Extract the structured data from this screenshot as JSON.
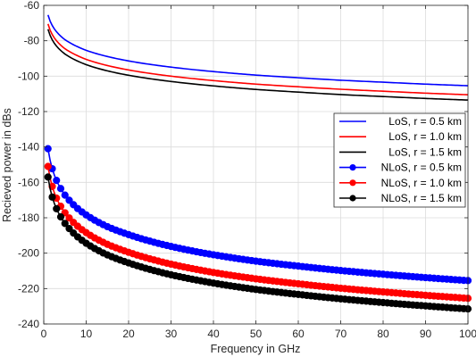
{
  "chart_data": {
    "type": "line",
    "title": "",
    "xlabel": "Frequency in GHz",
    "ylabel": "Recieved power in dBs",
    "xlim": [
      0,
      100
    ],
    "ylim": [
      -240,
      -60
    ],
    "xticks": [
      0,
      10,
      20,
      30,
      40,
      50,
      60,
      70,
      80,
      90,
      100
    ],
    "yticks": [
      -240,
      -220,
      -200,
      -180,
      -160,
      -140,
      -120,
      -100,
      -80,
      -60
    ],
    "grid": true,
    "legend_position": "right, middle",
    "x": [
      1,
      2,
      3,
      4,
      5,
      6,
      8,
      10,
      15,
      20,
      30,
      40,
      50,
      60,
      70,
      80,
      90,
      100
    ],
    "series": [
      {
        "name": "LoS, r = 0.5 km",
        "color": "#0000ff",
        "marker": "none",
        "values": [
          -65.4,
          -71.4,
          -74.9,
          -77.4,
          -79.4,
          -80.9,
          -83.4,
          -85.4,
          -88.9,
          -91.4,
          -94.9,
          -97.4,
          -99.4,
          -100.9,
          -102.3,
          -103.4,
          -104.5,
          -105.4
        ]
      },
      {
        "name": "LoS, r = 1.0 km",
        "color": "#ff0000",
        "marker": "none",
        "values": [
          -70.5,
          -76.5,
          -80.0,
          -82.5,
          -84.5,
          -86.0,
          -88.5,
          -90.5,
          -94.0,
          -96.5,
          -100.0,
          -102.5,
          -104.5,
          -106.0,
          -107.4,
          -108.5,
          -109.6,
          -110.5
        ]
      },
      {
        "name": "LoS, r = 1.5 km",
        "color": "#000000",
        "marker": "none",
        "values": [
          -73.5,
          -79.5,
          -83.0,
          -85.5,
          -87.5,
          -89.0,
          -91.5,
          -93.5,
          -97.0,
          -99.5,
          -103.0,
          -105.5,
          -107.5,
          -109.0,
          -110.4,
          -111.5,
          -112.6,
          -113.5
        ]
      },
      {
        "name": "NLoS, r = 0.5 km",
        "color": "#0000ff",
        "marker": "circle",
        "values": [
          -141.0,
          -152.3,
          -158.9,
          -163.5,
          -167.2,
          -170.1,
          -174.8,
          -178.4,
          -185.0,
          -189.5,
          -196.2,
          -200.9,
          -204.5,
          -207.3,
          -209.8,
          -211.9,
          -213.8,
          -215.5
        ]
      },
      {
        "name": "NLoS, r = 1.0 km",
        "color": "#ff0000",
        "marker": "circle",
        "values": [
          -151.0,
          -162.3,
          -168.9,
          -173.5,
          -177.2,
          -180.1,
          -184.8,
          -188.4,
          -195.0,
          -199.5,
          -206.2,
          -210.9,
          -214.5,
          -217.3,
          -219.8,
          -221.9,
          -223.8,
          -225.5
        ]
      },
      {
        "name": "NLoS, r = 1.5 km",
        "color": "#000000",
        "marker": "circle",
        "values": [
          -157.0,
          -168.3,
          -174.9,
          -179.5,
          -183.2,
          -186.1,
          -190.8,
          -194.4,
          -201.0,
          -205.5,
          -212.2,
          -216.9,
          -220.5,
          -223.3,
          -225.8,
          -227.9,
          -229.8,
          -231.5
        ]
      }
    ]
  }
}
